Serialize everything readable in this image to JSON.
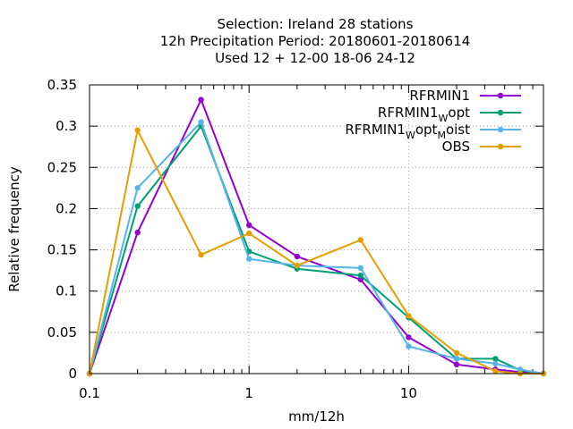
{
  "chart_data": {
    "type": "line",
    "title_lines": [
      "Selection: Ireland      28 stations",
      "12h Precipitation  Period: 20180601-20180614",
      "Used  12 + 12-00 18-06 24-12"
    ],
    "xlabel": "mm/12h",
    "ylabel": "Relative frequency",
    "x_scale": "log",
    "xlim": [
      0.1,
      70
    ],
    "ylim": [
      0,
      0.35
    ],
    "x_ticks": [
      {
        "value": 0.1,
        "label": "0.1"
      },
      {
        "value": 1,
        "label": "1"
      },
      {
        "value": 10,
        "label": "10"
      }
    ],
    "y_ticks": [
      {
        "value": 0,
        "label": "0"
      },
      {
        "value": 0.05,
        "label": "0.05"
      },
      {
        "value": 0.1,
        "label": "0.1"
      },
      {
        "value": 0.15,
        "label": "0.15"
      },
      {
        "value": 0.2,
        "label": "0.2"
      },
      {
        "value": 0.25,
        "label": "0.25"
      },
      {
        "value": 0.3,
        "label": "0.3"
      },
      {
        "value": 0.35,
        "label": "0.35"
      }
    ],
    "grid": true,
    "legend_position": "top-right",
    "series": [
      {
        "name": "RFRMIN1",
        "name_parts": [
          {
            "text": "RFRMIN1",
            "sub": false
          }
        ],
        "color": "#9400d3",
        "x": [
          0.1,
          0.2,
          0.5,
          1,
          2,
          5,
          10,
          20,
          35,
          50,
          70
        ],
        "y": [
          0.0,
          0.171,
          0.332,
          0.18,
          0.142,
          0.114,
          0.044,
          0.011,
          0.005,
          0.002,
          0.0
        ]
      },
      {
        "name": "RFRMIN1_Wopt",
        "name_parts": [
          {
            "text": "RFRMIN1",
            "sub": false
          },
          {
            "text": "W",
            "sub": true
          },
          {
            "text": "opt",
            "sub": false
          }
        ],
        "color": "#009e73",
        "x": [
          0.1,
          0.2,
          0.5,
          1,
          2,
          5,
          10,
          20,
          35,
          50,
          70
        ],
        "y": [
          0.0,
          0.203,
          0.3,
          0.148,
          0.127,
          0.119,
          0.068,
          0.018,
          0.018,
          0.004,
          0.0
        ]
      },
      {
        "name": "RFRMIN1_Wopt_Moist",
        "name_parts": [
          {
            "text": "RFRMIN1",
            "sub": false
          },
          {
            "text": "W",
            "sub": true
          },
          {
            "text": "opt",
            "sub": false
          },
          {
            "text": "M",
            "sub": true
          },
          {
            "text": "oist",
            "sub": false
          }
        ],
        "color": "#56b4e9",
        "x": [
          0.1,
          0.2,
          0.5,
          1,
          2,
          5,
          10,
          20,
          35,
          50,
          70
        ],
        "y": [
          0.0,
          0.225,
          0.305,
          0.139,
          0.131,
          0.128,
          0.033,
          0.018,
          0.012,
          0.005,
          0.0
        ]
      },
      {
        "name": "OBS",
        "name_parts": [
          {
            "text": "OBS",
            "sub": false
          }
        ],
        "color": "#e69f00",
        "x": [
          0.1,
          0.2,
          0.5,
          1,
          2,
          5,
          10,
          20,
          35,
          50,
          70
        ],
        "y": [
          0.0,
          0.295,
          0.144,
          0.17,
          0.131,
          0.162,
          0.07,
          0.025,
          0.003,
          0.0,
          0.0
        ]
      }
    ]
  }
}
